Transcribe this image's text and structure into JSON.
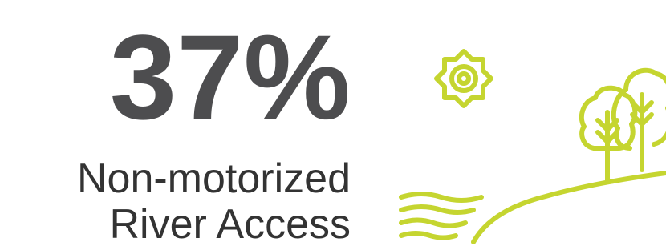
{
  "stat": {
    "value": "37%",
    "label_lines": [
      "Non-motorized",
      "River Access"
    ]
  }
}
